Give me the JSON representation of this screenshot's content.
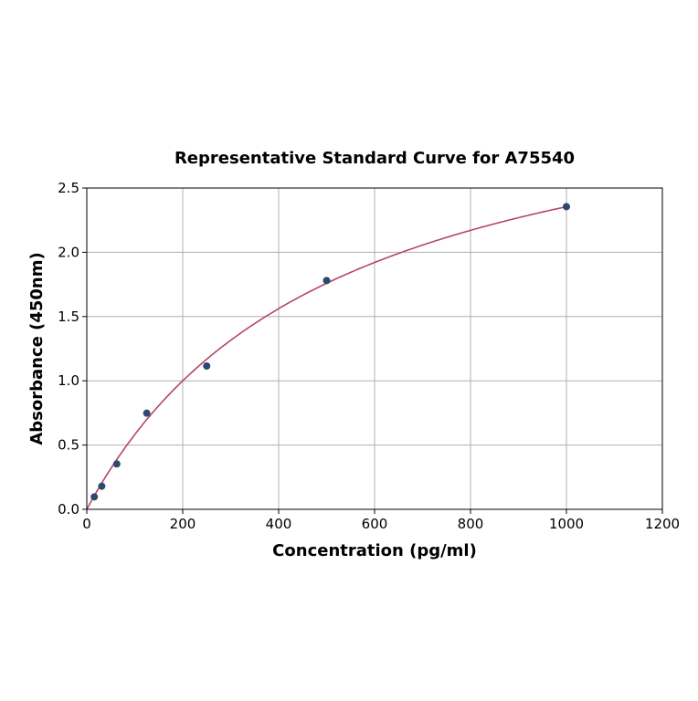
{
  "chart_data": {
    "type": "scatter",
    "title": "Representative Standard Curve for A75540",
    "xlabel": "Concentration (pg/ml)",
    "ylabel": "Absorbance (450nm)",
    "xlim": [
      0,
      1200
    ],
    "ylim": [
      0,
      2.5
    ],
    "xticks": [
      "0",
      "200",
      "400",
      "600",
      "800",
      "1000",
      "1200"
    ],
    "yticks": [
      "0.0",
      "0.5",
      "1.0",
      "1.5",
      "2.0",
      "2.5"
    ],
    "grid": true,
    "legend": "none",
    "series": [
      {
        "x": [
          15.6,
          31.25,
          62.5,
          125,
          250,
          500,
          1000
        ],
        "y": [
          0.097,
          0.18,
          0.353,
          0.748,
          1.115,
          1.78,
          2.355
        ],
        "marker_color": "#2c4a6e"
      }
    ],
    "fit_curve_color": "#b5446e"
  }
}
